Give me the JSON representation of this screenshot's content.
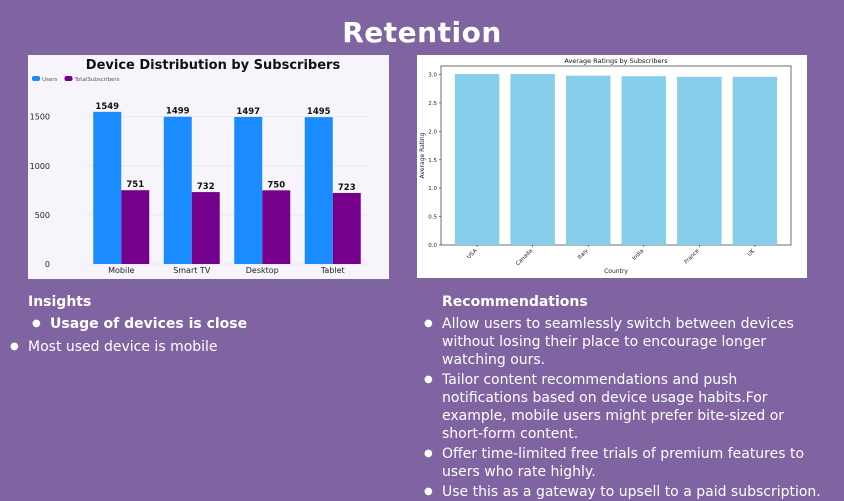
{
  "page": {
    "title": "Retention"
  },
  "insights": {
    "heading": "Insights",
    "items": [
      "Usage of devices is close",
      "Most used device is mobile"
    ]
  },
  "recommendations": {
    "heading": "Recommendations",
    "items": [
      "Allow users to seamlessly switch between devices without losing their place to encourage longer watching ours.",
      "Tailor content recommendations and push notifications based on device usage habits.For example, mobile users might prefer bite-sized or short-form content.",
      "Offer time-limited free trials of premium features to users who rate highly.",
      "Use this as a gateway to upsell to a paid subscription."
    ]
  },
  "chart_data": [
    {
      "type": "bar",
      "title": "Device Distribution by Subscribers",
      "categories": [
        "Mobile",
        "Smart TV",
        "Desktop",
        "Tablet"
      ],
      "series": [
        {
          "name": "Users",
          "values": [
            1549,
            1499,
            1497,
            1495
          ],
          "color": "#1a8cff"
        },
        {
          "name": "TotalSubscribers",
          "values": [
            751,
            732,
            750,
            723
          ],
          "color": "#74008b"
        }
      ],
      "ylim": [
        0,
        1700
      ],
      "yticks": [
        0,
        500,
        1000,
        1500
      ],
      "legend": "top-left",
      "grid": true
    },
    {
      "type": "bar",
      "title": "Average Ratings by Subscribers",
      "xlabel": "Country",
      "ylabel": "Average Rating",
      "categories": [
        "USA",
        "Canada",
        "Italy",
        "India",
        "France",
        "UK"
      ],
      "values": [
        3.01,
        3.01,
        2.98,
        2.97,
        2.96,
        2.96
      ],
      "color": "#87ceeb",
      "ylim": [
        0,
        3.15
      ],
      "yticks": [
        0.0,
        0.5,
        1.0,
        1.5,
        2.0,
        2.5,
        3.0
      ],
      "grid": false
    }
  ]
}
